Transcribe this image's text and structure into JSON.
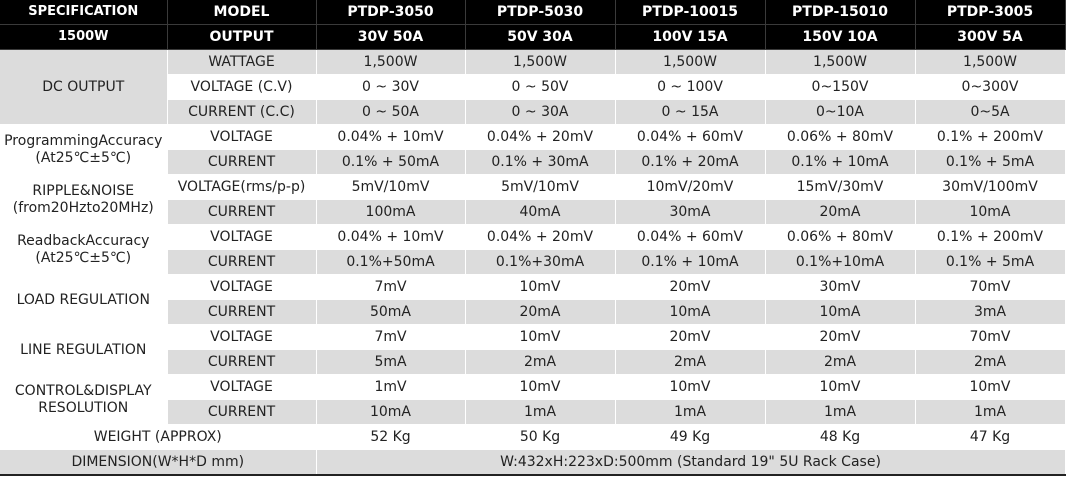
{
  "header": {
    "spec_label": "SPECIFICATION",
    "model_label": "MODEL",
    "power_label": "1500W",
    "output_label": "OUTPUT",
    "models": [
      "PTDP-3050",
      "PTDP-5030",
      "PTDP-10015",
      "PTDP-15010",
      "PTDP-3005"
    ],
    "outputs": [
      "30V 50A",
      "50V 30A",
      "100V 15A",
      "150V 10A",
      "300V 5A"
    ]
  },
  "rows": [
    {
      "param": "WATTAGE",
      "values": [
        "1,500W",
        "1,500W",
        "1,500W",
        "1,500W",
        "1,500W"
      ]
    },
    {
      "param": "VOLTAGE (C.V)",
      "values": [
        "0 ~ 30V",
        "0 ~ 50V",
        "0 ~ 100V",
        "0~150V",
        "0~300V"
      ]
    },
    {
      "param": "CURRENT (C.C)",
      "values": [
        "0 ~ 50A",
        "0 ~ 30A",
        "0 ~ 15A",
        "0~10A",
        "0~5A"
      ]
    },
    {
      "param": "VOLTAGE",
      "values": [
        "0.04% + 10mV",
        "0.04% + 20mV",
        "0.04% + 60mV",
        "0.06% + 80mV",
        "0.1% + 200mV"
      ]
    },
    {
      "param": "CURRENT",
      "values": [
        "0.1% + 50mA",
        "0.1% + 30mA",
        "0.1% + 20mA",
        "0.1% + 10mA",
        "0.1% + 5mA"
      ]
    },
    {
      "param": "VOLTAGE(rms/p-p)",
      "values": [
        "5mV/10mV",
        "5mV/10mV",
        "10mV/20mV",
        "15mV/30mV",
        "30mV/100mV"
      ]
    },
    {
      "param": "CURRENT",
      "values": [
        "100mA",
        "40mA",
        "30mA",
        "20mA",
        "10mA"
      ]
    },
    {
      "param": "VOLTAGE",
      "values": [
        "0.04% + 10mV",
        "0.04% + 20mV",
        "0.04% + 60mV",
        "0.06% + 80mV",
        "0.1% + 200mV"
      ]
    },
    {
      "param": "CURRENT",
      "values": [
        "0.1%+50mA",
        "0.1%+30mA",
        "0.1% + 10mA",
        "0.1%+10mA",
        "0.1% + 5mA"
      ]
    },
    {
      "param": "VOLTAGE",
      "values": [
        "7mV",
        "10mV",
        "20mV",
        "30mV",
        "70mV"
      ]
    },
    {
      "param": "CURRENT",
      "values": [
        "50mA",
        "20mA",
        "10mA",
        "10mA",
        "3mA"
      ]
    },
    {
      "param": "VOLTAGE",
      "values": [
        "7mV",
        "10mV",
        "20mV",
        "20mV",
        "70mV"
      ]
    },
    {
      "param": "CURRENT",
      "values": [
        "5mA",
        "2mA",
        "2mA",
        "2mA",
        "2mA"
      ]
    },
    {
      "param": "VOLTAGE",
      "values": [
        "1mV",
        "10mV",
        "10mV",
        "10mV",
        "10mV"
      ]
    },
    {
      "param": "CURRENT",
      "values": [
        "10mA",
        "1mA",
        "1mA",
        "1mA",
        "1mA"
      ]
    }
  ],
  "sections": {
    "dc_output": "DC OUTPUT",
    "prog_1": "ProgrammingAccuracy",
    "prog_2": "(At25℃±5℃)",
    "ripple_1": "RIPPLE&NOISE",
    "ripple_2": "(from20Hzto20MHz)",
    "readback_1": "ReadbackAccuracy",
    "readback_2": "(At25℃±5℃)",
    "load_reg": "LOAD REGULATION",
    "line_reg": "LINE REGULATION",
    "control_1": "CONTROL&DISPLAY",
    "control_2": "RESOLUTION"
  },
  "weight": {
    "label": "WEIGHT (APPROX)",
    "values": [
      "52 Kg",
      "50 Kg",
      "49 Kg",
      "48 Kg",
      "47 Kg"
    ]
  },
  "dimension": {
    "label": "DIMENSION(W*H*D mm)",
    "value": "W:432xH:223xD:500mm (Standard 19\" 5U Rack Case)"
  }
}
